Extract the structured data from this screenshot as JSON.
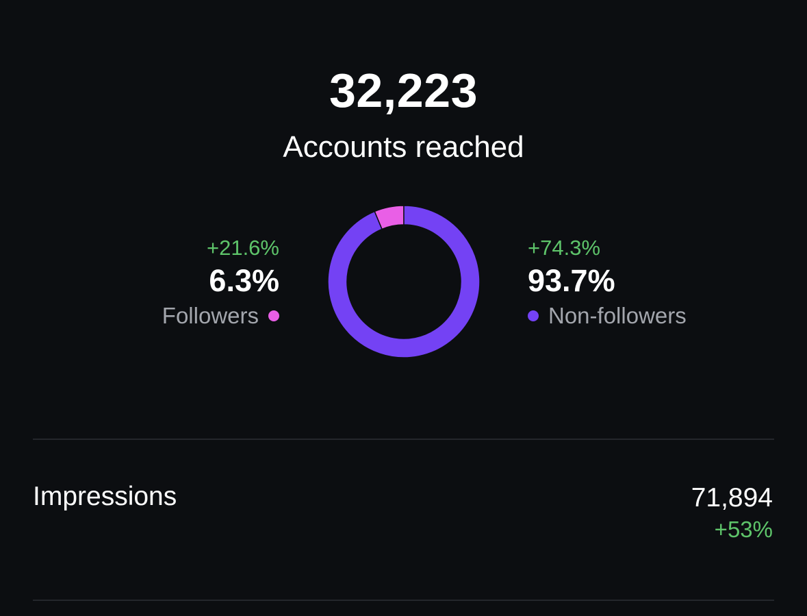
{
  "summary": {
    "total": "32,223",
    "label": "Accounts reached"
  },
  "chart_data": {
    "type": "pie",
    "variant": "donut",
    "series": [
      {
        "name": "Followers",
        "value": 6.3,
        "color": "#e95fe6"
      },
      {
        "name": "Non-followers",
        "value": 93.7,
        "color": "#7442f4"
      }
    ]
  },
  "followers": {
    "change": "+21.6%",
    "percent": "6.3%",
    "label": "Followers",
    "color": "#e95fe6"
  },
  "non_followers": {
    "change": "+74.3%",
    "percent": "93.7%",
    "label": "Non-followers",
    "color": "#7442f4"
  },
  "impressions": {
    "label": "Impressions",
    "value": "71,894",
    "change": "+53%"
  },
  "colors": {
    "background": "#0c0e11",
    "positive": "#5ec46a",
    "divider": "#24272c"
  }
}
